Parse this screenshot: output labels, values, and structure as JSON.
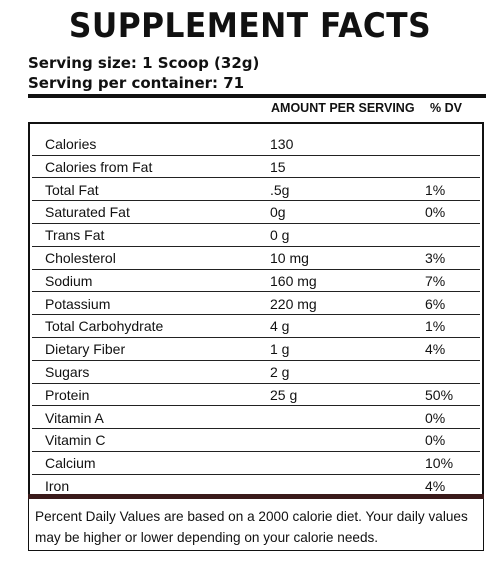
{
  "title": "SUPPLEMENT FACTS",
  "serving_size": "Serving size: 1 Scoop (32g)",
  "servings_per_container": "Serving per container: 71",
  "columns": {
    "amount": "AMOUNT PER SERVING",
    "dv": "% DV"
  },
  "rows": [
    {
      "label": "Calories",
      "amount": "130",
      "dv": ""
    },
    {
      "label": "Calories from Fat",
      "amount": "15",
      "dv": ""
    },
    {
      "label": "Total Fat",
      "amount": ".5g",
      "dv": "1%"
    },
    {
      "label": "Saturated Fat",
      "amount": "0g",
      "dv": "0%"
    },
    {
      "label": "Trans Fat",
      "amount": "0 g",
      "dv": ""
    },
    {
      "label": "Cholesterol",
      "amount": "10  mg",
      "dv": "3%"
    },
    {
      "label": "Sodium",
      "amount": "160 mg",
      "dv": "7%"
    },
    {
      "label": "Potassium",
      "amount": "220 mg",
      "dv": "6%"
    },
    {
      "label": "Total Carbohydrate",
      "amount": "4 g",
      "dv": "1%"
    },
    {
      "label": "Dietary Fiber",
      "amount": "1 g",
      "dv": "4%"
    },
    {
      "label": "Sugars",
      "amount": "2 g",
      "dv": ""
    },
    {
      "label": "Protein",
      "amount": "25 g",
      "dv": "50%"
    },
    {
      "label": "Vitamin A",
      "amount": "",
      "dv": "0%"
    },
    {
      "label": "Vitamin C",
      "amount": "",
      "dv": "0%"
    },
    {
      "label": "Calcium",
      "amount": "",
      "dv": "10%"
    },
    {
      "label": "Iron",
      "amount": "",
      "dv": "4%"
    }
  ],
  "footnote": "Percent Daily Values are based on a 2000 calorie diet. Your daily values may be higher or lower depending on your calorie needs."
}
